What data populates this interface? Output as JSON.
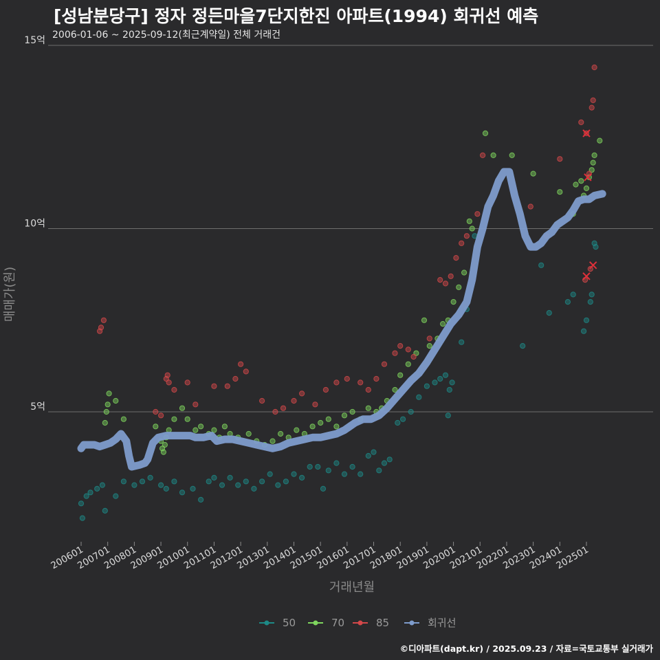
{
  "chart_data": {
    "type": "scatter",
    "title": "[성남분당구] 정자 정든마을7단지한진 아파트(1994) 회귀선 예측",
    "subtitle": "2006-01-06 ~ 2025-09-12(최근계약일) 전체 거래건",
    "xlabel": "거래년월",
    "ylabel": "매매가(원)",
    "caption": "©디아파트(dapt.kr) / 2025.09.23 / 자료=국토교통부 실거래가",
    "ylim": [
      1.7,
      15.5
    ],
    "xlim": [
      2005.9,
      2025.9
    ],
    "y_ticks": [
      {
        "value": 5,
        "label": "5억"
      },
      {
        "value": 10,
        "label": "10억"
      },
      {
        "value": 15,
        "label": "15억"
      }
    ],
    "x_ticks": [
      {
        "value": 2006,
        "label": "200601"
      },
      {
        "value": 2007,
        "label": "200701"
      },
      {
        "value": 2008,
        "label": "200801"
      },
      {
        "value": 2009,
        "label": "200901"
      },
      {
        "value": 2010,
        "label": "201001"
      },
      {
        "value": 2011,
        "label": "201101"
      },
      {
        "value": 2012,
        "label": "201201"
      },
      {
        "value": 2013,
        "label": "201301"
      },
      {
        "value": 2014,
        "label": "201401"
      },
      {
        "value": 2015,
        "label": "201501"
      },
      {
        "value": 2016,
        "label": "201601"
      },
      {
        "value": 2017,
        "label": "201701"
      },
      {
        "value": 2018,
        "label": "201801"
      },
      {
        "value": 2019,
        "label": "201901"
      },
      {
        "value": 2020,
        "label": "202001"
      },
      {
        "value": 2021,
        "label": "202101"
      },
      {
        "value": 2022,
        "label": "202201"
      },
      {
        "value": 2023,
        "label": "202301"
      },
      {
        "value": 2024,
        "label": "202401"
      },
      {
        "value": 2025,
        "label": "202501"
      }
    ],
    "legend": [
      {
        "name": "50",
        "color": "#1d8a87"
      },
      {
        "name": "70",
        "color": "#7fd65e"
      },
      {
        "name": "85",
        "color": "#d4484a"
      },
      {
        "name": "회귀선",
        "color": "#7e9ccc"
      }
    ],
    "series": [
      {
        "name": "50",
        "color": "#1d8a87",
        "points": [
          [
            2006.0,
            2.5
          ],
          [
            2006.05,
            2.1
          ],
          [
            2006.2,
            2.7
          ],
          [
            2006.35,
            2.8
          ],
          [
            2006.6,
            2.9
          ],
          [
            2006.8,
            3.0
          ],
          [
            2006.9,
            2.3
          ],
          [
            2007.3,
            2.7
          ],
          [
            2007.6,
            3.1
          ],
          [
            2008.0,
            3.0
          ],
          [
            2008.3,
            3.1
          ],
          [
            2008.6,
            3.2
          ],
          [
            2009.0,
            3.0
          ],
          [
            2009.2,
            2.9
          ],
          [
            2009.5,
            3.1
          ],
          [
            2009.8,
            2.8
          ],
          [
            2010.2,
            2.9
          ],
          [
            2010.5,
            2.6
          ],
          [
            2010.8,
            3.1
          ],
          [
            2011.0,
            3.2
          ],
          [
            2011.3,
            3.0
          ],
          [
            2011.6,
            3.2
          ],
          [
            2011.9,
            3.0
          ],
          [
            2012.2,
            3.1
          ],
          [
            2012.5,
            2.9
          ],
          [
            2012.8,
            3.1
          ],
          [
            2013.1,
            3.3
          ],
          [
            2013.4,
            3.0
          ],
          [
            2013.7,
            3.1
          ],
          [
            2014.0,
            3.3
          ],
          [
            2014.3,
            3.2
          ],
          [
            2014.6,
            3.5
          ],
          [
            2014.9,
            3.5
          ],
          [
            2015.1,
            2.9
          ],
          [
            2015.3,
            3.4
          ],
          [
            2015.6,
            3.6
          ],
          [
            2015.9,
            3.3
          ],
          [
            2016.2,
            3.5
          ],
          [
            2016.5,
            3.3
          ],
          [
            2016.8,
            3.8
          ],
          [
            2017.0,
            3.9
          ],
          [
            2017.2,
            3.4
          ],
          [
            2017.4,
            3.6
          ],
          [
            2017.6,
            3.7
          ],
          [
            2017.9,
            4.7
          ],
          [
            2018.1,
            4.8
          ],
          [
            2018.4,
            5.0
          ],
          [
            2018.7,
            5.4
          ],
          [
            2019.0,
            5.7
          ],
          [
            2019.3,
            5.8
          ],
          [
            2019.5,
            5.9
          ],
          [
            2019.7,
            6.0
          ],
          [
            2019.8,
            4.9
          ],
          [
            2019.85,
            5.6
          ],
          [
            2019.95,
            5.8
          ],
          [
            2020.3,
            6.9
          ],
          [
            2020.5,
            7.8
          ],
          [
            2020.8,
            9.8
          ],
          [
            2022.6,
            6.8
          ],
          [
            2023.3,
            9.0
          ],
          [
            2023.6,
            7.7
          ],
          [
            2024.3,
            8.0
          ],
          [
            2024.5,
            8.2
          ],
          [
            2024.9,
            7.2
          ],
          [
            2025.0,
            7.5
          ],
          [
            2025.15,
            8.0
          ],
          [
            2025.3,
            9.6
          ],
          [
            2025.35,
            9.5
          ],
          [
            2025.2,
            8.2
          ]
        ]
      },
      {
        "name": "70",
        "color": "#7fd65e",
        "points": [
          [
            2006.9,
            4.7
          ],
          [
            2006.95,
            5.0
          ],
          [
            2007.0,
            5.2
          ],
          [
            2007.05,
            5.5
          ],
          [
            2007.3,
            5.3
          ],
          [
            2007.6,
            4.8
          ],
          [
            2008.8,
            4.6
          ],
          [
            2009.0,
            4.2
          ],
          [
            2009.05,
            4.0
          ],
          [
            2009.1,
            3.9
          ],
          [
            2009.15,
            4.1
          ],
          [
            2009.2,
            4.3
          ],
          [
            2009.3,
            4.5
          ],
          [
            2009.5,
            4.8
          ],
          [
            2009.8,
            5.1
          ],
          [
            2010.0,
            4.8
          ],
          [
            2010.3,
            4.5
          ],
          [
            2010.5,
            4.6
          ],
          [
            2010.8,
            4.4
          ],
          [
            2011.0,
            4.5
          ],
          [
            2011.2,
            4.3
          ],
          [
            2011.4,
            4.6
          ],
          [
            2011.6,
            4.4
          ],
          [
            2011.9,
            4.3
          ],
          [
            2012.3,
            4.4
          ],
          [
            2012.6,
            4.2
          ],
          [
            2012.9,
            4.1
          ],
          [
            2013.2,
            4.2
          ],
          [
            2013.5,
            4.4
          ],
          [
            2013.8,
            4.3
          ],
          [
            2014.1,
            4.5
          ],
          [
            2014.4,
            4.4
          ],
          [
            2014.7,
            4.6
          ],
          [
            2015.0,
            4.7
          ],
          [
            2015.3,
            4.8
          ],
          [
            2015.6,
            4.6
          ],
          [
            2015.9,
            4.9
          ],
          [
            2016.2,
            5.0
          ],
          [
            2016.5,
            4.8
          ],
          [
            2016.8,
            5.1
          ],
          [
            2017.1,
            5.0
          ],
          [
            2017.3,
            5.1
          ],
          [
            2017.5,
            5.3
          ],
          [
            2017.8,
            5.6
          ],
          [
            2018.0,
            6.0
          ],
          [
            2018.3,
            6.3
          ],
          [
            2018.6,
            6.6
          ],
          [
            2018.9,
            7.5
          ],
          [
            2019.1,
            6.8
          ],
          [
            2019.4,
            7.0
          ],
          [
            2019.6,
            7.4
          ],
          [
            2019.8,
            7.5
          ],
          [
            2020.0,
            8.0
          ],
          [
            2020.2,
            8.4
          ],
          [
            2020.4,
            8.8
          ],
          [
            2020.6,
            10.2
          ],
          [
            2020.7,
            10.0
          ],
          [
            2021.2,
            12.6
          ],
          [
            2021.5,
            12.0
          ],
          [
            2022.2,
            12.0
          ],
          [
            2023.0,
            11.5
          ],
          [
            2024.0,
            11.0
          ],
          [
            2024.5,
            10.4
          ],
          [
            2024.6,
            11.2
          ],
          [
            2024.8,
            11.3
          ],
          [
            2024.9,
            10.9
          ],
          [
            2025.0,
            11.1
          ],
          [
            2025.1,
            11.4
          ],
          [
            2025.2,
            11.6
          ],
          [
            2025.25,
            11.8
          ],
          [
            2025.3,
            12.0
          ],
          [
            2025.5,
            12.4
          ]
        ]
      },
      {
        "name": "85",
        "color": "#d4484a",
        "points": [
          [
            2006.7,
            7.2
          ],
          [
            2006.75,
            7.3
          ],
          [
            2006.85,
            7.5
          ],
          [
            2008.8,
            5.0
          ],
          [
            2009.0,
            4.9
          ],
          [
            2009.2,
            5.9
          ],
          [
            2009.25,
            6.0
          ],
          [
            2009.3,
            5.8
          ],
          [
            2009.5,
            5.6
          ],
          [
            2010.0,
            5.8
          ],
          [
            2010.3,
            5.2
          ],
          [
            2011.0,
            5.7
          ],
          [
            2011.5,
            5.7
          ],
          [
            2011.8,
            5.9
          ],
          [
            2012.0,
            6.3
          ],
          [
            2012.2,
            6.1
          ],
          [
            2012.8,
            5.3
          ],
          [
            2013.3,
            5.0
          ],
          [
            2013.6,
            5.1
          ],
          [
            2014.0,
            5.3
          ],
          [
            2014.3,
            5.5
          ],
          [
            2014.8,
            5.2
          ],
          [
            2015.2,
            5.6
          ],
          [
            2015.6,
            5.8
          ],
          [
            2016.0,
            5.9
          ],
          [
            2016.5,
            5.8
          ],
          [
            2016.8,
            5.6
          ],
          [
            2017.1,
            5.9
          ],
          [
            2017.4,
            6.3
          ],
          [
            2017.8,
            6.6
          ],
          [
            2018.0,
            6.8
          ],
          [
            2018.3,
            6.7
          ],
          [
            2018.5,
            6.5
          ],
          [
            2019.1,
            7.0
          ],
          [
            2019.5,
            8.6
          ],
          [
            2019.7,
            8.5
          ],
          [
            2019.9,
            8.7
          ],
          [
            2020.1,
            9.2
          ],
          [
            2020.3,
            9.6
          ],
          [
            2020.5,
            9.8
          ],
          [
            2020.9,
            10.4
          ],
          [
            2021.1,
            12.0
          ],
          [
            2022.9,
            10.6
          ],
          [
            2023.5,
            9.8
          ],
          [
            2024.0,
            11.9
          ],
          [
            2024.8,
            12.9
          ],
          [
            2025.0,
            12.6
          ],
          [
            2025.1,
            11.5
          ],
          [
            2025.2,
            13.3
          ],
          [
            2025.25,
            13.5
          ],
          [
            2025.3,
            14.4
          ],
          [
            2024.95,
            8.6
          ],
          [
            2025.15,
            8.9
          ]
        ]
      },
      {
        "name": "회귀선",
        "color": "#7e9ccc",
        "points": [
          [
            2006.0,
            4.0
          ],
          [
            2006.1,
            4.1
          ],
          [
            2006.3,
            4.1
          ],
          [
            2006.5,
            4.1
          ],
          [
            2006.7,
            4.05
          ],
          [
            2006.9,
            4.1
          ],
          [
            2007.1,
            4.15
          ],
          [
            2007.3,
            4.25
          ],
          [
            2007.5,
            4.4
          ],
          [
            2007.7,
            4.2
          ],
          [
            2007.8,
            3.8
          ],
          [
            2007.9,
            3.5
          ],
          [
            2008.2,
            3.55
          ],
          [
            2008.4,
            3.6
          ],
          [
            2008.5,
            3.7
          ],
          [
            2008.7,
            4.15
          ],
          [
            2008.9,
            4.3
          ],
          [
            2009.2,
            4.35
          ],
          [
            2009.6,
            4.35
          ],
          [
            2009.9,
            4.35
          ],
          [
            2010.1,
            4.35
          ],
          [
            2010.3,
            4.3
          ],
          [
            2010.6,
            4.3
          ],
          [
            2010.9,
            4.35
          ],
          [
            2011.1,
            4.2
          ],
          [
            2011.4,
            4.25
          ],
          [
            2011.7,
            4.25
          ],
          [
            2012.0,
            4.2
          ],
          [
            2012.3,
            4.15
          ],
          [
            2012.6,
            4.1
          ],
          [
            2012.9,
            4.05
          ],
          [
            2013.2,
            4.0
          ],
          [
            2013.5,
            4.05
          ],
          [
            2013.8,
            4.15
          ],
          [
            2014.1,
            4.2
          ],
          [
            2014.4,
            4.25
          ],
          [
            2014.7,
            4.3
          ],
          [
            2015.0,
            4.3
          ],
          [
            2015.3,
            4.35
          ],
          [
            2015.6,
            4.4
          ],
          [
            2015.9,
            4.5
          ],
          [
            2016.1,
            4.6
          ],
          [
            2016.3,
            4.7
          ],
          [
            2016.6,
            4.8
          ],
          [
            2016.9,
            4.8
          ],
          [
            2017.2,
            4.9
          ],
          [
            2017.5,
            5.1
          ],
          [
            2017.8,
            5.35
          ],
          [
            2018.1,
            5.6
          ],
          [
            2018.4,
            5.85
          ],
          [
            2018.7,
            6.05
          ],
          [
            2019.0,
            6.35
          ],
          [
            2019.3,
            6.7
          ],
          [
            2019.6,
            7.05
          ],
          [
            2019.9,
            7.4
          ],
          [
            2020.2,
            7.65
          ],
          [
            2020.5,
            8.0
          ],
          [
            2020.7,
            8.6
          ],
          [
            2020.9,
            9.5
          ],
          [
            2021.1,
            10.0
          ],
          [
            2021.3,
            10.6
          ],
          [
            2021.5,
            10.9
          ],
          [
            2021.7,
            11.3
          ],
          [
            2021.9,
            11.55
          ],
          [
            2022.1,
            11.55
          ],
          [
            2022.3,
            10.9
          ],
          [
            2022.5,
            10.4
          ],
          [
            2022.7,
            9.8
          ],
          [
            2022.9,
            9.5
          ],
          [
            2023.1,
            9.5
          ],
          [
            2023.3,
            9.6
          ],
          [
            2023.5,
            9.8
          ],
          [
            2023.7,
            9.9
          ],
          [
            2023.9,
            10.1
          ],
          [
            2024.1,
            10.2
          ],
          [
            2024.3,
            10.3
          ],
          [
            2024.5,
            10.5
          ],
          [
            2024.7,
            10.75
          ],
          [
            2024.9,
            10.8
          ],
          [
            2025.1,
            10.8
          ],
          [
            2025.3,
            10.9
          ],
          [
            2025.6,
            10.95
          ]
        ]
      }
    ],
    "outlier_markers": [
      [
        2025.0,
        12.6
      ],
      [
        2025.05,
        11.4
      ],
      [
        2025.0,
        8.7
      ],
      [
        2025.25,
        9.0
      ]
    ]
  }
}
